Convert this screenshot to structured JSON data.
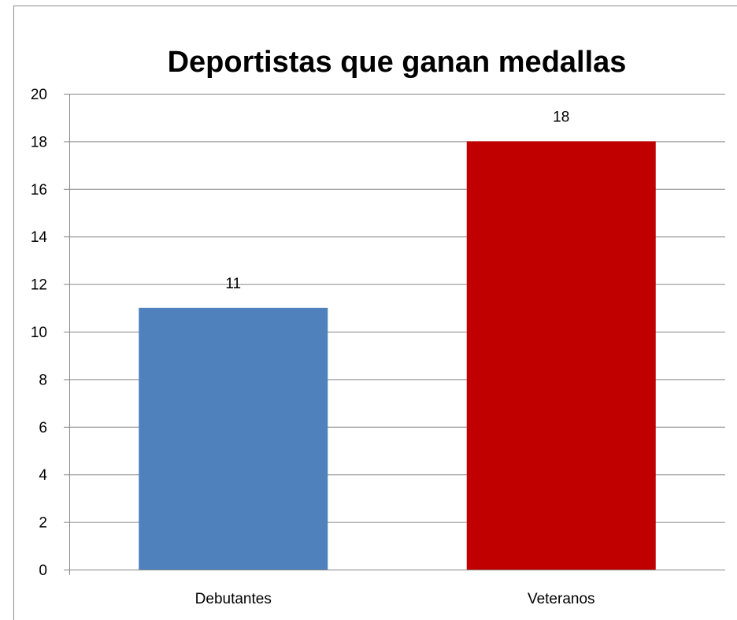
{
  "chart_data": {
    "type": "bar",
    "title": "Deportistas que ganan medallas",
    "categories": [
      "Debutantes",
      "Veteranos"
    ],
    "values": [
      11,
      18
    ],
    "colors": [
      "#4f81bd",
      "#c00000"
    ],
    "data_labels": [
      "11",
      "18"
    ],
    "ylim": [
      0,
      20
    ],
    "yticks": [
      0,
      2,
      4,
      6,
      8,
      10,
      12,
      14,
      16,
      18,
      20
    ],
    "grid": true,
    "legend": "none",
    "xlabel": "",
    "ylabel": ""
  }
}
